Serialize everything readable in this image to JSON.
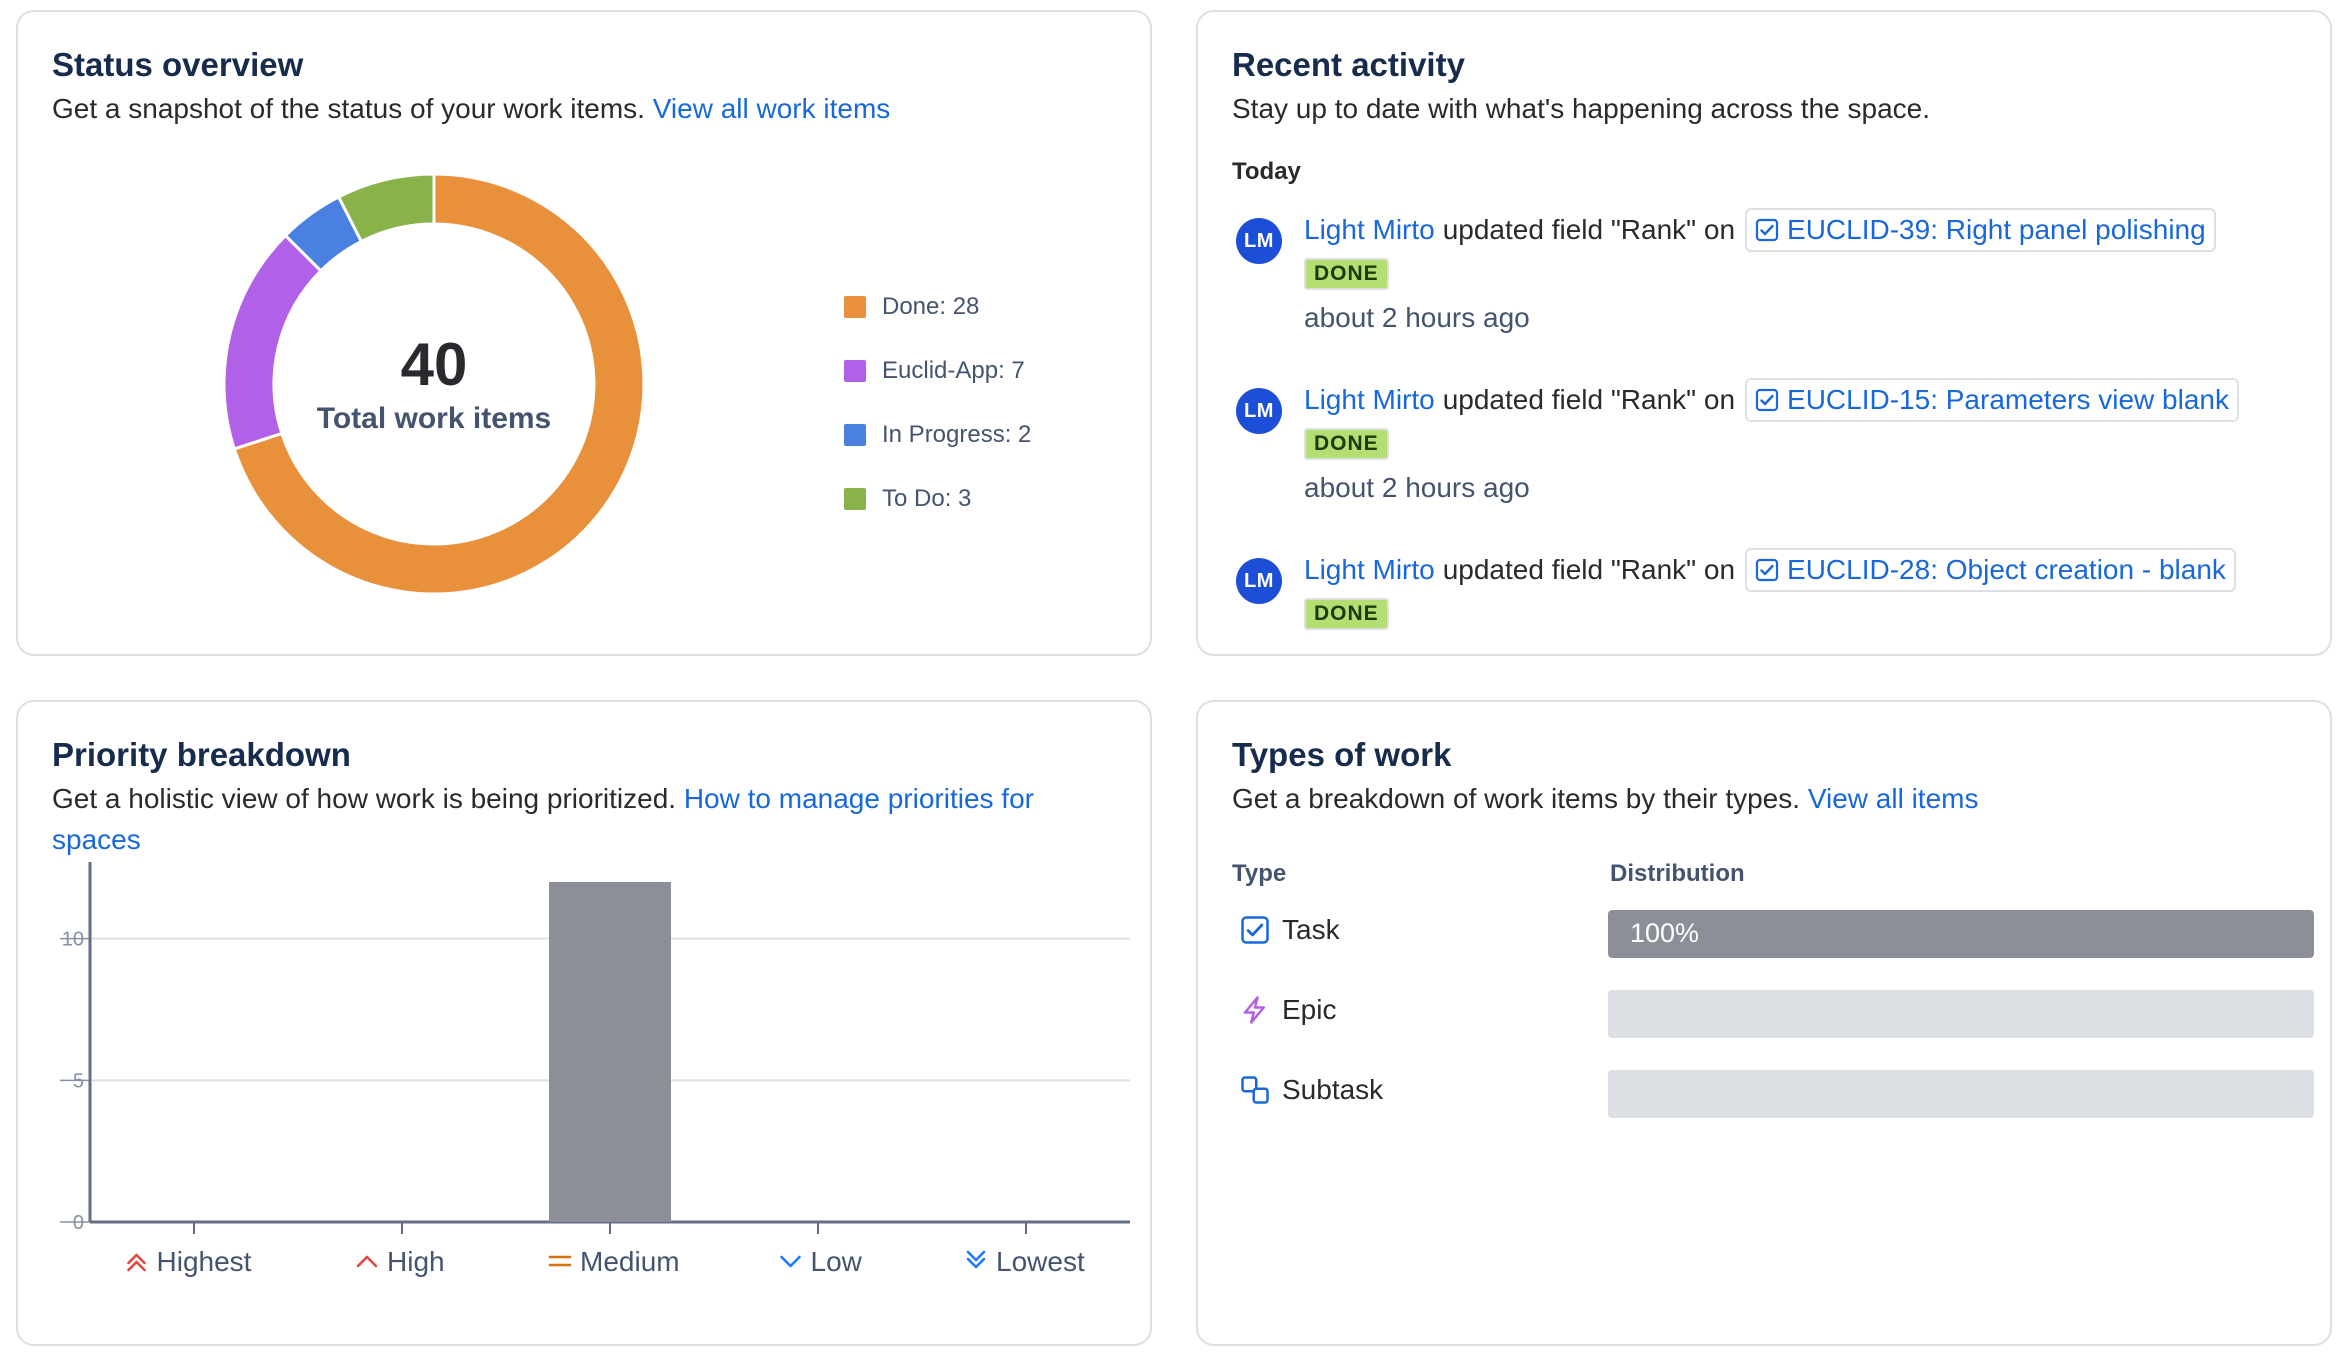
{
  "status_overview": {
    "title": "Status overview",
    "description": "Get a snapshot of the status of your work items.",
    "link": "View all work items",
    "total": "40",
    "total_label": "Total work items",
    "legend": [
      {
        "label": "Done: 28",
        "value": 28,
        "color": "#e8903a"
      },
      {
        "label": "Euclid-App: 7",
        "value": 7,
        "color": "#b160e8"
      },
      {
        "label": "In Progress: 2",
        "value": 2,
        "color": "#4a80e0"
      },
      {
        "label": "To Do: 3",
        "value": 3,
        "color": "#8ab24a"
      }
    ]
  },
  "recent_activity": {
    "title": "Recent activity",
    "description": "Stay up to date with what's happening across the space.",
    "section": "Today",
    "items": [
      {
        "initials": "LM",
        "user": "Light Mirto",
        "action": "updated field \"Rank\" on",
        "work_item": "EUCLID-39: Right panel polishing",
        "status": "DONE",
        "time": "about 2 hours ago"
      },
      {
        "initials": "LM",
        "user": "Light Mirto",
        "action": "updated field \"Rank\" on",
        "work_item": "EUCLID-15: Parameters view blank",
        "status": "DONE",
        "time": "about 2 hours ago"
      },
      {
        "initials": "LM",
        "user": "Light Mirto",
        "action": "updated field \"Rank\" on",
        "work_item": "EUCLID-28: Object creation - blank",
        "status": "DONE",
        "time": ""
      }
    ]
  },
  "priority_breakdown": {
    "title": "Priority breakdown",
    "description": "Get a holistic view of how work is being prioritized.",
    "link": "How to manage priorities for spaces"
  },
  "chart_data": {
    "type": "bar",
    "categories": [
      "Highest",
      "High",
      "Medium",
      "Low",
      "Lowest"
    ],
    "values": [
      0,
      0,
      12,
      0,
      0
    ],
    "ylim": [
      0,
      12
    ],
    "yticks": [
      "0",
      "5",
      "10"
    ],
    "grid": true,
    "bar_color": "#8c8f97",
    "category_icons": [
      "double-chevron-up-icon",
      "chevron-up-icon",
      "equals-icon",
      "chevron-down-icon",
      "double-chevron-down-icon"
    ],
    "category_colors": [
      "#e2483d",
      "#e2483d",
      "#d97008",
      "#1d7afc",
      "#1d7afc"
    ]
  },
  "types_of_work": {
    "title": "Types of work",
    "description": "Get a breakdown of work items by their types.",
    "link": "View all items",
    "col_type": "Type",
    "col_distribution": "Distribution",
    "rows": [
      {
        "name": "Task",
        "icon": "task-checkbox-icon",
        "fraction": 1.0,
        "pct_label": "100%"
      },
      {
        "name": "Epic",
        "icon": "lightning-icon",
        "fraction": 0,
        "pct_label": ""
      },
      {
        "name": "Subtask",
        "icon": "subtask-icon",
        "fraction": 0,
        "pct_label": ""
      }
    ]
  }
}
